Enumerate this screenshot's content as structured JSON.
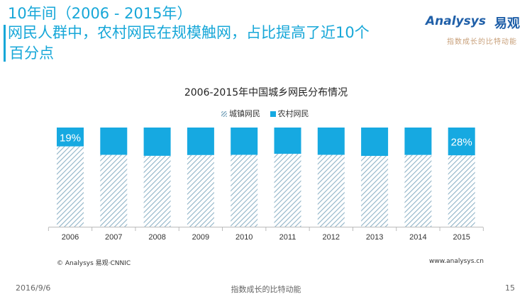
{
  "header": {
    "title_line1": "10年间（2006 - 2015年）",
    "title_line2": "网民人群中，农村网民在规模触网，占比提高了近10个",
    "title_line3": "百分点"
  },
  "logo": {
    "brand": "Analysys",
    "brand_cn": "易观",
    "slogan": "指数成长的比特动能"
  },
  "chart_data": {
    "type": "bar",
    "stacked": true,
    "percent_stacked": true,
    "title": "2006-2015年中国城乡网民分布情况",
    "categories": [
      "2006",
      "2007",
      "2008",
      "2009",
      "2010",
      "2011",
      "2012",
      "2013",
      "2014",
      "2015"
    ],
    "series": [
      {
        "name": "城镇网民",
        "values": [
          81,
          72.5,
          71.5,
          72.3,
          72.5,
          73.5,
          72.5,
          71.4,
          72.4,
          72
        ],
        "color": "#8fb3c7",
        "pattern": "hatched"
      },
      {
        "name": "农村网民",
        "values": [
          19,
          27.5,
          28.5,
          27.7,
          27.5,
          26.5,
          27.5,
          28.6,
          27.6,
          28
        ],
        "color": "#16a9e1"
      }
    ],
    "data_labels": [
      {
        "category": "2006",
        "series": "农村网民",
        "text": "19%"
      },
      {
        "category": "2015",
        "series": "农村网民",
        "text": "28%"
      }
    ],
    "ylim": [
      0,
      100
    ],
    "legend_position": "top",
    "grid": false
  },
  "source": {
    "left": "© Analysys 易观·CNNIC",
    "right": "www.analysys.cn"
  },
  "footer": {
    "date": "2016/9/6",
    "slogan": "指数成长的比特动能",
    "page": "15"
  }
}
